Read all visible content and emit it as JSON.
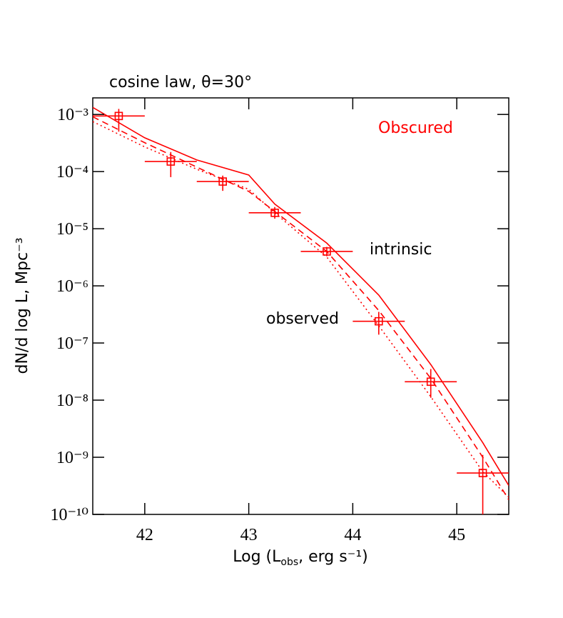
{
  "chart_data": {
    "type": "line",
    "title": "cosine law, θ=30°",
    "panel_label": "Obscured",
    "annotations": [
      "intrinsic",
      "observed"
    ],
    "xlabel": {
      "main": "Log (L",
      "sub": "obs",
      "rest": ", erg s⁻¹)"
    },
    "ylabel": "dN/d log L, Mpc⁻³",
    "log_y": true,
    "color": "#ff0000",
    "xlim": [
      41.5,
      45.5
    ],
    "xticks": [
      42,
      43,
      44,
      45
    ],
    "ylim": [
      1e-10,
      0.00195
    ],
    "yticks": [
      {
        "value": 1e-10,
        "label": "10⁻¹⁰"
      },
      {
        "value": 1e-09,
        "label": "10⁻⁹"
      },
      {
        "value": 1e-08,
        "label": "10⁻⁸"
      },
      {
        "value": 1e-07,
        "label": "10⁻⁷"
      },
      {
        "value": 1e-06,
        "label": "10⁻⁶"
      },
      {
        "value": 1e-05,
        "label": "10⁻⁵"
      },
      {
        "value": 0.0001,
        "label": "10⁻⁴"
      },
      {
        "value": 0.001,
        "label": "10⁻³"
      }
    ],
    "series": [
      {
        "style": "solid",
        "x": [
          41.5,
          42,
          42.5,
          43,
          43.25,
          43.75,
          44.25,
          44.75,
          45.25,
          45.5
        ],
        "values": [
          0.00133,
          0.00039,
          0.00016,
          8.7e-05,
          2.7e-05,
          5.6e-06,
          6.9e-07,
          4.2e-08,
          1.8e-09,
          3.2e-10
        ]
      },
      {
        "style": "dashed",
        "x": [
          41.5,
          42,
          42.5,
          43,
          43.25,
          43.75,
          44.25,
          44.75,
          45.25,
          45.5
        ],
        "values": [
          0.00091,
          0.00032,
          0.00012,
          4.5e-05,
          2e-05,
          4e-06,
          3.7e-07,
          2.4e-08,
          1e-09,
          1.8e-10
        ]
      },
      {
        "style": "dotted",
        "x": [
          41.5,
          42,
          42.5,
          43,
          43.25,
          43.75,
          44.25,
          44.75,
          45.25,
          45.5
        ],
        "values": [
          0.00075,
          0.00027,
          0.00011,
          4.9e-05,
          1.9e-05,
          3.2e-06,
          2e-07,
          1.15e-08,
          5.6e-10,
          2e-10
        ]
      }
    ],
    "points": {
      "x": [
        41.75,
        42.25,
        42.75,
        43.25,
        43.75,
        44.25,
        44.75,
        45.25
      ],
      "x_err": 0.25,
      "values": [
        0.00094,
        0.00015,
        6.7e-05,
        1.9e-05,
        4e-06,
        2.4e-07,
        2.1e-08,
        5.3e-10
      ],
      "y_lower": [
        0.0005,
        8e-05,
        4.6e-05,
        1.5e-05,
        3.3e-06,
        1.4e-07,
        1.1e-08,
        1e-10
      ],
      "y_upper": [
        0.00125,
        0.00022,
        8.5e-05,
        2.4e-05,
        4.8e-06,
        3.5e-07,
        3.5e-08,
        1.1e-09
      ]
    }
  }
}
